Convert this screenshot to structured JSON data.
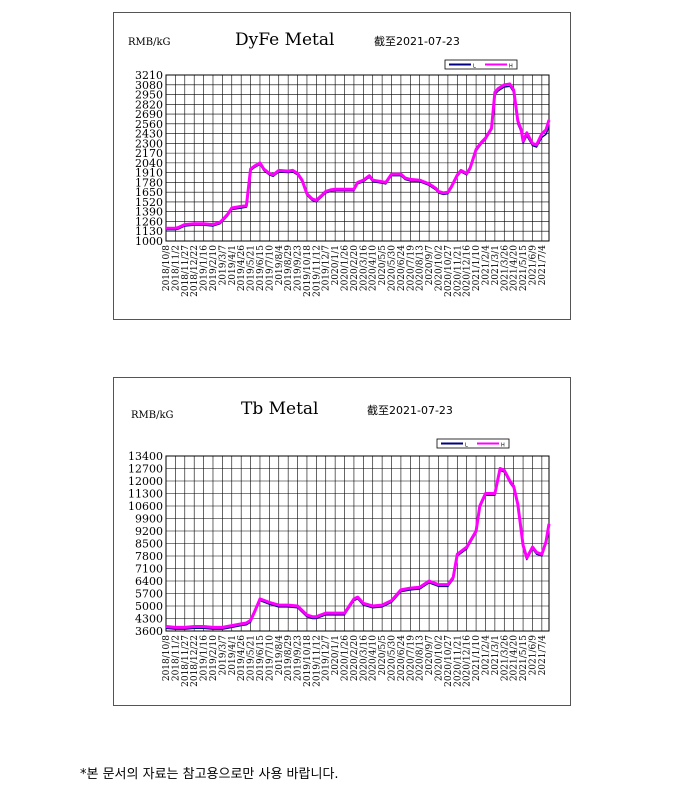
{
  "chart_data": [
    {
      "type": "line",
      "title": "DyFe Metal",
      "subtitle": "截至2021-07-23",
      "ylabel": "RMB/kG",
      "ylim": [
        1000,
        3210
      ],
      "yticks": [
        1000,
        1130,
        1260,
        1390,
        1520,
        1650,
        1780,
        1910,
        2040,
        2170,
        2300,
        2430,
        2560,
        2690,
        2820,
        2950,
        3080,
        3210
      ],
      "xticks": [
        "2018/10/8",
        "2018/11/2",
        "2018/11/27",
        "2018/12/22",
        "2019/1/16",
        "2019/2/10",
        "2019/3/7",
        "2019/4/1",
        "2019/4/26",
        "2019/5/21",
        "2019/6/15",
        "2019/7/10",
        "2019/8/4",
        "2019/8/29",
        "2019/9/23",
        "2019/10/18",
        "2019/11/12",
        "2019/12/7",
        "2020/1/1",
        "2020/1/26",
        "2020/2/20",
        "2020/3/16",
        "2020/4/10",
        "2020/5/5",
        "2020/5/30",
        "2020/6/24",
        "2020/7/19",
        "2020/8/13",
        "2020/9/7",
        "2020/10/2",
        "2020/10/27",
        "2020/11/21",
        "2020/12/16",
        "2021/1/10",
        "2021/2/4",
        "2021/3/1",
        "2021/3/26",
        "2021/4/20",
        "2021/5/15",
        "2021/6/9",
        "2021/7/4"
      ],
      "legend": [
        "L",
        "H"
      ],
      "legend_position": "top-right",
      "grid": true,
      "colors": {
        "L": "#000080",
        "H": "#ff00ff"
      },
      "x": [
        "2018/10/8",
        "2018/11/2",
        "2018/11/10",
        "2018/11/27",
        "2018/12/22",
        "2019/1/16",
        "2019/2/10",
        "2019/3/1",
        "2019/3/7",
        "2019/3/20",
        "2019/4/1",
        "2019/4/26",
        "2019/5/10",
        "2019/5/21",
        "2019/6/1",
        "2019/6/15",
        "2019/6/25",
        "2019/7/10",
        "2019/7/20",
        "2019/8/4",
        "2019/8/29",
        "2019/9/10",
        "2019/9/23",
        "2019/10/5",
        "2019/10/18",
        "2019/11/1",
        "2019/11/12",
        "2019/11/25",
        "2019/12/7",
        "2019/12/20",
        "2020/1/1",
        "2020/1/26",
        "2020/2/20",
        "2020/3/1",
        "2020/3/16",
        "2020/4/1",
        "2020/4/10",
        "2020/5/5",
        "2020/5/15",
        "2020/5/30",
        "2020/6/24",
        "2020/7/5",
        "2020/7/19",
        "2020/8/13",
        "2020/9/7",
        "2020/9/25",
        "2020/10/2",
        "2020/10/15",
        "2020/10/27",
        "2020/11/5",
        "2020/11/21",
        "2020/12/1",
        "2020/12/16",
        "2020/12/25",
        "2021/1/10",
        "2021/1/25",
        "2021/2/4",
        "2021/2/20",
        "2021/3/1",
        "2021/3/10",
        "2021/3/26",
        "2021/4/10",
        "2021/4/20",
        "2021/5/1",
        "2021/5/10",
        "2021/5/15",
        "2021/5/25",
        "2021/6/9",
        "2021/6/20",
        "2021/7/4",
        "2021/7/15",
        "2021/7/23"
      ],
      "series": [
        {
          "name": "L",
          "values": [
            1150,
            1150,
            1160,
            1200,
            1210,
            1210,
            1200,
            1230,
            1260,
            1330,
            1420,
            1440,
            1450,
            1940,
            1980,
            2020,
            1940,
            1880,
            1860,
            1920,
            1910,
            1920,
            1880,
            1790,
            1610,
            1540,
            1520,
            1580,
            1640,
            1660,
            1670,
            1670,
            1670,
            1760,
            1790,
            1850,
            1790,
            1770,
            1760,
            1870,
            1870,
            1820,
            1800,
            1790,
            1740,
            1680,
            1640,
            1620,
            1630,
            1700,
            1860,
            1920,
            1880,
            1950,
            2200,
            2300,
            2350,
            2480,
            2950,
            3000,
            3050,
            3060,
            2980,
            2560,
            2450,
            2300,
            2400,
            2270,
            2250,
            2380,
            2420,
            2520
          ]
        },
        {
          "name": "H",
          "values": [
            1170,
            1170,
            1180,
            1220,
            1230,
            1230,
            1220,
            1250,
            1280,
            1350,
            1440,
            1460,
            1470,
            1960,
            2000,
            2040,
            1960,
            1900,
            1880,
            1940,
            1930,
            1940,
            1900,
            1810,
            1630,
            1560,
            1540,
            1600,
            1660,
            1680,
            1690,
            1690,
            1690,
            1780,
            1810,
            1870,
            1810,
            1790,
            1780,
            1890,
            1890,
            1840,
            1820,
            1810,
            1760,
            1700,
            1660,
            1640,
            1650,
            1720,
            1880,
            1940,
            1900,
            1970,
            2220,
            2320,
            2370,
            2500,
            2980,
            3030,
            3080,
            3090,
            3010,
            2600,
            2480,
            2330,
            2440,
            2300,
            2280,
            2430,
            2480,
            2610
          ]
        }
      ]
    },
    {
      "type": "line",
      "title": "Tb Metal",
      "subtitle": "截至2021-07-23",
      "ylabel": "RMB/kG",
      "ylim": [
        3600,
        13400
      ],
      "yticks": [
        3600,
        4300,
        5000,
        5700,
        6400,
        7100,
        7800,
        8500,
        9200,
        9900,
        10600,
        11300,
        12000,
        12700,
        13400
      ],
      "xticks": [
        "2018/10/8",
        "2018/11/2",
        "2018/11/27",
        "2018/12/22",
        "2019/1/16",
        "2019/2/10",
        "2019/3/7",
        "2019/4/1",
        "2019/4/26",
        "2019/5/21",
        "2019/6/15",
        "2019/7/10",
        "2019/8/4",
        "2019/8/29",
        "2019/9/23",
        "2019/10/18",
        "2019/11/12",
        "2019/12/7",
        "2020/1/1",
        "2020/1/26",
        "2020/2/20",
        "2020/3/16",
        "2020/4/10",
        "2020/5/5",
        "2020/5/30",
        "2020/6/24",
        "2020/7/19",
        "2020/8/13",
        "2020/9/7",
        "2020/10/2",
        "2020/10/27",
        "2020/11/21",
        "2020/12/16",
        "2021/1/10",
        "2021/2/4",
        "2021/3/1",
        "2021/3/26",
        "2021/4/20",
        "2021/5/15",
        "2021/6/9",
        "2021/7/4"
      ],
      "legend": [
        "L",
        "H"
      ],
      "legend_position": "top-right",
      "grid": true,
      "colors": {
        "L": "#000080",
        "H": "#ff00ff"
      },
      "x": [
        "2018/10/8",
        "2018/11/2",
        "2018/11/27",
        "2018/12/22",
        "2019/1/16",
        "2019/2/10",
        "2019/3/7",
        "2019/4/1",
        "2019/4/26",
        "2019/5/10",
        "2019/5/21",
        "2019/6/1",
        "2019/6/15",
        "2019/7/10",
        "2019/8/4",
        "2019/8/29",
        "2019/9/23",
        "2019/10/18",
        "2019/11/1",
        "2019/11/12",
        "2019/12/7",
        "2020/1/1",
        "2020/1/26",
        "2020/2/20",
        "2020/3/1",
        "2020/3/16",
        "2020/4/10",
        "2020/5/5",
        "2020/5/30",
        "2020/6/24",
        "2020/7/19",
        "2020/8/13",
        "2020/9/7",
        "2020/10/2",
        "2020/10/27",
        "2020/11/10",
        "2020/11/21",
        "2020/12/16",
        "2021/1/10",
        "2021/1/20",
        "2021/2/4",
        "2021/2/20",
        "2021/3/1",
        "2021/3/15",
        "2021/3/26",
        "2021/4/10",
        "2021/4/20",
        "2021/5/1",
        "2021/5/15",
        "2021/5/25",
        "2021/6/9",
        "2021/6/20",
        "2021/7/4",
        "2021/7/15",
        "2021/7/23"
      ],
      "series": [
        {
          "name": "L",
          "values": [
            3750,
            3700,
            3700,
            3750,
            3750,
            3700,
            3700,
            3800,
            3900,
            3950,
            4100,
            4600,
            5300,
            5100,
            4950,
            4950,
            4900,
            4400,
            4300,
            4300,
            4500,
            4500,
            4500,
            5300,
            5400,
            5050,
            4900,
            4950,
            5200,
            5800,
            5900,
            5950,
            6300,
            6100,
            6100,
            6500,
            7800,
            8200,
            9100,
            10500,
            11200,
            11200,
            11200,
            12600,
            12500,
            11900,
            11600,
            10600,
            8300,
            7600,
            8200,
            7900,
            7800,
            8500,
            9200
          ]
        },
        {
          "name": "H",
          "values": [
            3850,
            3800,
            3800,
            3850,
            3850,
            3800,
            3800,
            3900,
            4000,
            4050,
            4200,
            4700,
            5400,
            5200,
            5050,
            5050,
            5000,
            4500,
            4400,
            4400,
            4600,
            4600,
            4600,
            5400,
            5500,
            5150,
            5000,
            5050,
            5300,
            5900,
            6000,
            6050,
            6400,
            6200,
            6200,
            6600,
            7900,
            8300,
            9200,
            10600,
            11300,
            11300,
            11300,
            12700,
            12600,
            12000,
            11700,
            10700,
            8400,
            7700,
            8300,
            8000,
            7900,
            8600,
            9600
          ]
        }
      ]
    }
  ],
  "footnote": "*본 문서의 자료는 참고용으로만 사용 바랍니다."
}
